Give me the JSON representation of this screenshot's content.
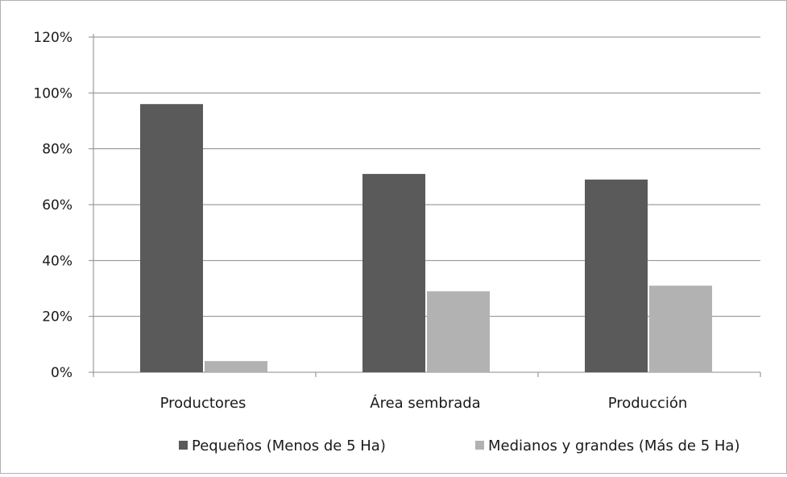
{
  "chart_data": {
    "type": "bar",
    "categories": [
      "Productores",
      "Área sembrada",
      "Producción"
    ],
    "series": [
      {
        "name": "Pequeños (Menos de 5 Ha)",
        "values": [
          96,
          71,
          69
        ],
        "color": "#5a5a5a"
      },
      {
        "name": "Medianos y grandes (Más de 5 Ha)",
        "values": [
          4,
          29,
          31
        ],
        "color": "#b2b2b2"
      }
    ],
    "y_ticks": [
      "0%",
      "20%",
      "40%",
      "60%",
      "80%",
      "100%",
      "120%"
    ],
    "ylim": [
      0,
      120
    ],
    "y_unit": "%",
    "grid": true,
    "legend_position": "bottom"
  }
}
